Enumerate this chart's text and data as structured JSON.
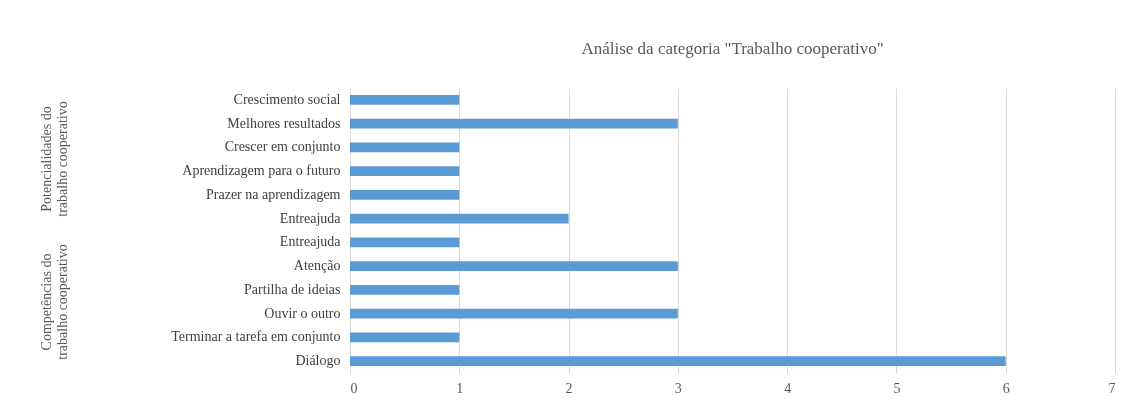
{
  "chart_data": {
    "type": "bar",
    "orientation": "horizontal",
    "title": "Análise da categoria \"Trabalho cooperativo\"",
    "categories": [
      "Crescimento social",
      "Melhores resultados",
      "Crescer em conjunto",
      "Aprendizagem para o futuro",
      "Prazer na aprendizagem",
      "Entreajuda",
      "Entreajuda",
      "Atenção",
      "Partilha de ideias",
      "Ouvir o outro",
      "Terminar a tarefa em conjunto",
      "Diálogo"
    ],
    "values": [
      1,
      3,
      1,
      1,
      1,
      2,
      1,
      3,
      1,
      3,
      1,
      6
    ],
    "color": "#5b9bd5",
    "xlim": [
      0,
      7
    ],
    "xticks": [
      0,
      1,
      2,
      3,
      4,
      5,
      6,
      7
    ],
    "grid": "x",
    "annotations": [
      "Potencialidades do trabalho cooperativo",
      "Competências do trabalho cooperativo"
    ]
  }
}
